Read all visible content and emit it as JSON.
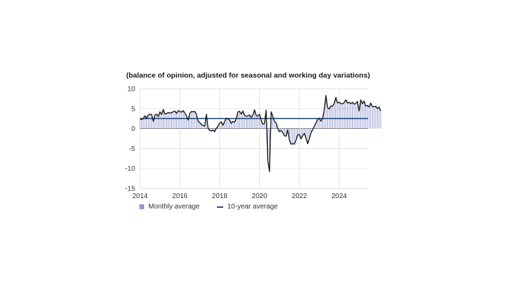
{
  "chart_data": {
    "type": "bar",
    "subtitle": "(balance of opinion, adjusted for seasonal and working day variations)",
    "xlabel": "",
    "ylabel": "",
    "xlim": [
      2014,
      2025.45
    ],
    "ylim": [
      -15,
      10
    ],
    "x_ticks": [
      2014,
      2016,
      2018,
      2020,
      2022,
      2024
    ],
    "y_ticks": [
      10,
      5,
      0,
      -5,
      -10,
      -15
    ],
    "grid": true,
    "legend": "bottom-left",
    "colors": {
      "bars": "#8f9bd0",
      "line": "#1a1a1a",
      "average": "#2a4a7a",
      "grid": "#d9d9d9"
    },
    "series": [
      {
        "name": "Monthly average",
        "type": "bar+line",
        "start": "2014-01",
        "frequency": "monthly",
        "values": [
          2.5,
          2.2,
          2.6,
          3.2,
          2.6,
          3.4,
          3.6,
          3.5,
          1.8,
          3.4,
          3.6,
          3.0,
          4.2,
          3.5,
          4.8,
          3.6,
          3.8,
          4.0,
          3.9,
          4.0,
          4.2,
          4.4,
          3.8,
          4.5,
          4.3,
          4.1,
          4.5,
          3.9,
          3.2,
          2.1,
          3.8,
          4.3,
          4.2,
          4.3,
          3.5,
          1.8,
          1.5,
          1.0,
          0.8,
          0.6,
          3.6,
          0.1,
          -0.5,
          -0.6,
          -0.4,
          -0.8,
          0.1,
          0.6,
          1.4,
          1.7,
          0.8,
          1.8,
          2.6,
          2.4,
          2.1,
          1.3,
          1.8,
          1.6,
          2.5,
          4.2,
          4.3,
          3.6,
          4.4,
          3.3,
          3.1,
          3.2,
          3.4,
          2.8,
          3.4,
          4.7,
          3.3,
          3.1,
          3.6,
          2.1,
          1.1,
          1.3,
          4.6,
          -8.0,
          -10.8,
          4.2,
          3.1,
          1.8,
          1.4,
          0.0,
          -0.8,
          -0.5,
          -1.0,
          -1.8,
          -1.9,
          -0.3,
          -2.9,
          -3.9,
          -3.8,
          -3.9,
          -2.9,
          -1.6,
          -1.5,
          -2.6,
          -1.8,
          -1.2,
          -2.4,
          -3.8,
          -2.6,
          -1.1,
          -0.3,
          0.6,
          1.4,
          2.3,
          2.6,
          1.8,
          2.6,
          4.6,
          8.3,
          5.3,
          4.9,
          5.7,
          5.6,
          6.3,
          7.8,
          6.4,
          6.6,
          6.3,
          6.2,
          6.5,
          7.2,
          6.4,
          6.6,
          6.2,
          6.6,
          6.1,
          6.3,
          6.8,
          4.4,
          7.2,
          6.2,
          6.9,
          5.6,
          5.8,
          5.4,
          6.4,
          5.5,
          5.5,
          5.6,
          5.0,
          5.4,
          4.4
        ]
      },
      {
        "name": "10-year average",
        "type": "line",
        "value": 2.5
      }
    ]
  },
  "legend": {
    "monthly": "Monthly average",
    "average": "10-year average"
  }
}
